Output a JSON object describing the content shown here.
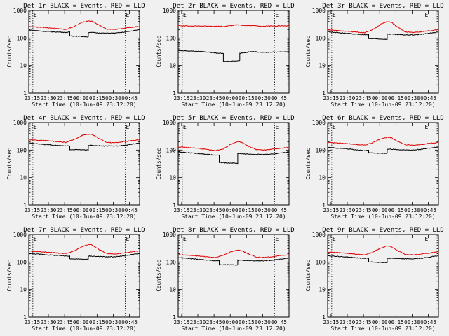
{
  "chart_data": [
    {
      "type": "line",
      "title": "Det 1r BLACK = Events, RED = LLD",
      "xlabel": "Start Time (10-Jun-09 23:12:20)",
      "ylabel": "Counts/sec",
      "x_ticks": [
        "23:15",
        "23:30",
        "23:45",
        "00:00",
        "00:15",
        "00:30",
        "00:45"
      ],
      "y_ticks": [
        "1",
        "10",
        "100",
        "1000"
      ],
      "y_scale": "log",
      "ylim": [
        1,
        1000
      ],
      "xlim_minutes": [
        -2,
        52
      ],
      "markers": [
        {
          "label": "E",
          "x": 0
        },
        {
          "label": "E",
          "x": 45
        }
      ],
      "series": [
        {
          "color": "#e00000",
          "x": [
            -2,
            8,
            16,
            20,
            24,
            27,
            29,
            32,
            36,
            40,
            45,
            52
          ],
          "y": [
            260,
            235,
            205,
            260,
            370,
            420,
            410,
            300,
            210,
            205,
            230,
            265
          ]
        },
        {
          "color": "#000000",
          "x": [
            -2,
            8,
            16,
            18,
            18.01,
            27,
            27.01,
            34,
            40,
            45,
            52
          ],
          "y": [
            195,
            170,
            160,
            162,
            120,
            110,
            160,
            150,
            150,
            165,
            200
          ]
        }
      ]
    },
    {
      "type": "line",
      "title": "Det 2r BLACK = Events, RED = LLD",
      "xlabel": "Start Time (10-Jun-09 23:12:20)",
      "ylabel": "Counts/sec",
      "x_ticks": [
        "23:15",
        "23:30",
        "23:45",
        "00:00",
        "00:15",
        "00:30",
        "00:45"
      ],
      "y_ticks": [
        "1",
        "10",
        "100",
        "1000"
      ],
      "y_scale": "log",
      "ylim": [
        1,
        1000
      ],
      "xlim_minutes": [
        -2,
        52
      ],
      "markers": [
        {
          "label": "E",
          "x": 0
        },
        {
          "label": "E",
          "x": 45
        }
      ],
      "series": [
        {
          "color": "#e00000",
          "x": [
            -2,
            10,
            20,
            26,
            32,
            40,
            52
          ],
          "y": [
            280,
            270,
            265,
            300,
            285,
            270,
            280
          ]
        },
        {
          "color": "#000000",
          "x": [
            -2,
            10,
            18,
            20,
            20.01,
            28,
            28.01,
            34,
            40,
            52
          ],
          "y": [
            35,
            32,
            28,
            27,
            14,
            15,
            28,
            32,
            30,
            32
          ]
        }
      ]
    },
    {
      "type": "line",
      "title": "Det 3r BLACK = Events, RED = LLD",
      "xlabel": "Start Time (10-Jun-09 23:12:20)",
      "ylabel": "Counts/sec",
      "x_ticks": [
        "23:15",
        "23:30",
        "23:45",
        "00:00",
        "00:15",
        "00:30",
        "00:45"
      ],
      "y_ticks": [
        "1",
        "10",
        "100",
        "1000"
      ],
      "y_scale": "log",
      "ylim": [
        1,
        1000
      ],
      "xlim_minutes": [
        -2,
        52
      ],
      "markers": [
        {
          "label": "E",
          "x": 0
        },
        {
          "label": "E",
          "x": 45
        }
      ],
      "series": [
        {
          "color": "#e00000",
          "x": [
            -2,
            8,
            16,
            20,
            24,
            27,
            29,
            32,
            36,
            40,
            45,
            52
          ],
          "y": [
            200,
            175,
            155,
            200,
            320,
            400,
            380,
            250,
            165,
            160,
            175,
            200
          ]
        },
        {
          "color": "#000000",
          "x": [
            -2,
            8,
            16,
            18,
            18.01,
            27,
            27.01,
            34,
            40,
            45,
            52
          ],
          "y": [
            170,
            145,
            130,
            132,
            95,
            90,
            140,
            130,
            130,
            140,
            165
          ]
        }
      ]
    },
    {
      "type": "line",
      "title": "Det 4r BLACK = Events, RED = LLD",
      "xlabel": "Start Time (10-Jun-09 23:12:20)",
      "ylabel": "Counts/sec",
      "x_ticks": [
        "23:15",
        "23:30",
        "23:45",
        "00:00",
        "00:15",
        "00:30",
        "00:45"
      ],
      "y_ticks": [
        "1",
        "10",
        "100",
        "1000"
      ],
      "y_scale": "log",
      "ylim": [
        1,
        1000
      ],
      "xlim_minutes": [
        -2,
        52
      ],
      "markers": [
        {
          "label": "E",
          "x": 0
        },
        {
          "label": "E",
          "x": 45
        }
      ],
      "series": [
        {
          "color": "#e00000",
          "x": [
            -2,
            8,
            16,
            20,
            24,
            27,
            29,
            32,
            36,
            40,
            45,
            52
          ],
          "y": [
            240,
            215,
            190,
            240,
            340,
            380,
            360,
            270,
            190,
            185,
            205,
            240
          ]
        },
        {
          "color": "#000000",
          "x": [
            -2,
            8,
            16,
            18,
            18.01,
            27,
            27.01,
            34,
            40,
            45,
            52
          ],
          "y": [
            180,
            155,
            140,
            142,
            105,
            100,
            150,
            140,
            140,
            150,
            180
          ]
        }
      ]
    },
    {
      "type": "line",
      "title": "Det 5r BLACK = Events, RED = LLD",
      "xlabel": "Start Time (10-Jun-09 23:12:20)",
      "ylabel": "Counts/sec",
      "x_ticks": [
        "23:15",
        "23:30",
        "23:45",
        "00:00",
        "00:15",
        "00:30",
        "00:45"
      ],
      "y_ticks": [
        "1",
        "10",
        "100",
        "1000"
      ],
      "y_scale": "log",
      "ylim": [
        1,
        1000
      ],
      "xlim_minutes": [
        -2,
        52
      ],
      "markers": [
        {
          "label": "E",
          "x": 0
        },
        {
          "label": "E",
          "x": 45
        }
      ],
      "series": [
        {
          "color": "#e00000",
          "x": [
            -2,
            8,
            16,
            20,
            24,
            27,
            29,
            32,
            36,
            40,
            45,
            52
          ],
          "y": [
            130,
            115,
            95,
            110,
            170,
            200,
            190,
            140,
            105,
            100,
            110,
            125
          ]
        },
        {
          "color": "#000000",
          "x": [
            -2,
            8,
            16,
            18,
            18.01,
            27,
            27.01,
            34,
            40,
            45,
            52
          ],
          "y": [
            85,
            75,
            65,
            66,
            35,
            33,
            75,
            70,
            70,
            72,
            85
          ]
        }
      ]
    },
    {
      "type": "line",
      "title": "Det 6r BLACK = Events, RED = LLD",
      "xlabel": "Start Time (10-Jun-09 23:12:20)",
      "ylabel": "Counts/sec",
      "x_ticks": [
        "23:15",
        "23:30",
        "23:45",
        "00:00",
        "00:15",
        "00:30",
        "00:45"
      ],
      "y_ticks": [
        "1",
        "10",
        "100",
        "1000"
      ],
      "y_scale": "log",
      "ylim": [
        1,
        1000
      ],
      "xlim_minutes": [
        -2,
        52
      ],
      "markers": [
        {
          "label": "E",
          "x": 0
        },
        {
          "label": "E",
          "x": 45
        }
      ],
      "series": [
        {
          "color": "#e00000",
          "x": [
            -2,
            8,
            16,
            20,
            24,
            27,
            29,
            32,
            36,
            40,
            45,
            52
          ],
          "y": [
            190,
            170,
            150,
            185,
            260,
            290,
            280,
            210,
            155,
            150,
            165,
            190
          ]
        },
        {
          "color": "#000000",
          "x": [
            -2,
            8,
            16,
            18,
            18.01,
            27,
            27.01,
            34,
            40,
            45,
            52
          ],
          "y": [
            125,
            110,
            95,
            97,
            80,
            75,
            110,
            100,
            100,
            110,
            130
          ]
        }
      ]
    },
    {
      "type": "line",
      "title": "Det 7r BLACK = Events, RED = LLD",
      "xlabel": "Start Time (10-Jun-09 23:12:20)",
      "ylabel": "Counts/sec",
      "x_ticks": [
        "23:15",
        "23:30",
        "23:45",
        "00:00",
        "00:15",
        "00:30",
        "00:45"
      ],
      "y_ticks": [
        "1",
        "10",
        "100",
        "1000"
      ],
      "y_scale": "log",
      "ylim": [
        1,
        1000
      ],
      "xlim_minutes": [
        -2,
        52
      ],
      "markers": [
        {
          "label": "E",
          "x": 0
        },
        {
          "label": "E",
          "x": 45
        }
      ],
      "series": [
        {
          "color": "#e00000",
          "x": [
            -2,
            8,
            16,
            20,
            24,
            27,
            29,
            32,
            36,
            40,
            45,
            52
          ],
          "y": [
            250,
            225,
            200,
            250,
            360,
            430,
            410,
            290,
            200,
            195,
            215,
            255
          ]
        },
        {
          "color": "#000000",
          "x": [
            -2,
            8,
            16,
            18,
            18.01,
            27,
            27.01,
            34,
            40,
            45,
            52
          ],
          "y": [
            205,
            180,
            165,
            167,
            130,
            125,
            165,
            155,
            155,
            170,
            205
          ]
        }
      ]
    },
    {
      "type": "line",
      "title": "Det 8r BLACK = Events, RED = LLD",
      "xlabel": "Start Time (10-Jun-09 23:12:20)",
      "ylabel": "Counts/sec",
      "x_ticks": [
        "23:15",
        "23:30",
        "23:45",
        "00:00",
        "00:15",
        "00:30",
        "00:45"
      ],
      "y_ticks": [
        "1",
        "10",
        "100",
        "1000"
      ],
      "y_scale": "log",
      "ylim": [
        1,
        1000
      ],
      "xlim_minutes": [
        -2,
        52
      ],
      "markers": [
        {
          "label": "E",
          "x": 0
        },
        {
          "label": "E",
          "x": 45
        }
      ],
      "series": [
        {
          "color": "#e00000",
          "x": [
            -2,
            8,
            16,
            20,
            24,
            27,
            29,
            32,
            36,
            40,
            45,
            52
          ],
          "y": [
            185,
            165,
            145,
            175,
            240,
            270,
            255,
            200,
            150,
            145,
            160,
            185
          ]
        },
        {
          "color": "#000000",
          "x": [
            -2,
            8,
            16,
            18,
            18.01,
            27,
            27.01,
            34,
            40,
            45,
            52
          ],
          "y": [
            145,
            125,
            110,
            112,
            80,
            78,
            115,
            110,
            110,
            118,
            140
          ]
        }
      ]
    },
    {
      "type": "line",
      "title": "Det 9r BLACK = Events, RED = LLD",
      "xlabel": "Start Time (10-Jun-09 23:12:20)",
      "ylabel": "Counts/sec",
      "x_ticks": [
        "23:15",
        "23:30",
        "23:45",
        "00:00",
        "00:15",
        "00:30",
        "00:45"
      ],
      "y_ticks": [
        "1",
        "10",
        "100",
        "1000"
      ],
      "y_scale": "log",
      "ylim": [
        1,
        1000
      ],
      "xlim_minutes": [
        -2,
        52
      ],
      "markers": [
        {
          "label": "E",
          "x": 0
        },
        {
          "label": "E",
          "x": 45
        }
      ],
      "series": [
        {
          "color": "#e00000",
          "x": [
            -2,
            8,
            16,
            20,
            24,
            27,
            29,
            32,
            36,
            40,
            45,
            52
          ],
          "y": [
            230,
            205,
            180,
            225,
            320,
            380,
            360,
            260,
            185,
            180,
            200,
            235
          ]
        },
        {
          "color": "#000000",
          "x": [
            -2,
            8,
            16,
            18,
            18.01,
            27,
            27.01,
            34,
            40,
            45,
            52
          ],
          "y": [
            170,
            150,
            135,
            137,
            100,
            95,
            140,
            130,
            130,
            140,
            170
          ]
        }
      ]
    }
  ]
}
